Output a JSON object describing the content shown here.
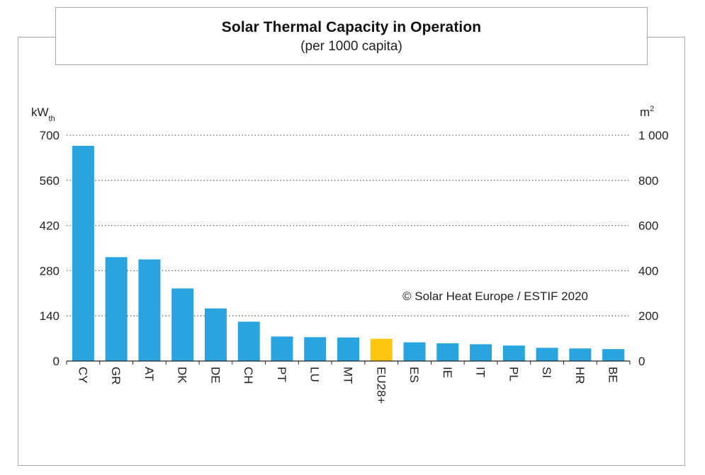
{
  "chart_data": {
    "type": "bar",
    "title": "Solar Thermal Capacity in Operation",
    "subtitle": "(per 1000 capita)",
    "ylabel_left": {
      "base": "kW",
      "sub": "th"
    },
    "ylabel_right": {
      "base": "m",
      "sup": "2"
    },
    "ylim_left": [
      0,
      700
    ],
    "ylim_right": [
      0,
      1000
    ],
    "yticks_left": [
      0,
      140,
      280,
      420,
      560,
      700
    ],
    "yticks_left_labels": [
      "0",
      "140",
      "280",
      "420",
      "560",
      "700"
    ],
    "yticks_right": [
      0,
      200,
      400,
      600,
      800,
      1000
    ],
    "yticks_right_labels": [
      "0",
      "200",
      "400",
      "600",
      "800",
      "1 000"
    ],
    "categories": [
      "CY",
      "GR",
      "AT",
      "DK",
      "DE",
      "CH",
      "PT",
      "LU",
      "MT",
      "EU28+",
      "ES",
      "IE",
      "IT",
      "PL",
      "SI",
      "HR",
      "BE"
    ],
    "values": [
      667,
      322,
      315,
      225,
      163,
      122,
      76,
      74,
      73,
      69,
      58,
      55,
      52,
      48,
      41,
      39,
      37
    ],
    "highlight_category": "EU28+",
    "colors": {
      "bar": "#2aa4de",
      "highlight": "#fdc60f",
      "grid": "#555555",
      "axis": "#222222"
    },
    "grid": true,
    "annotation": "© Solar Heat Europe / ESTIF 2020"
  }
}
